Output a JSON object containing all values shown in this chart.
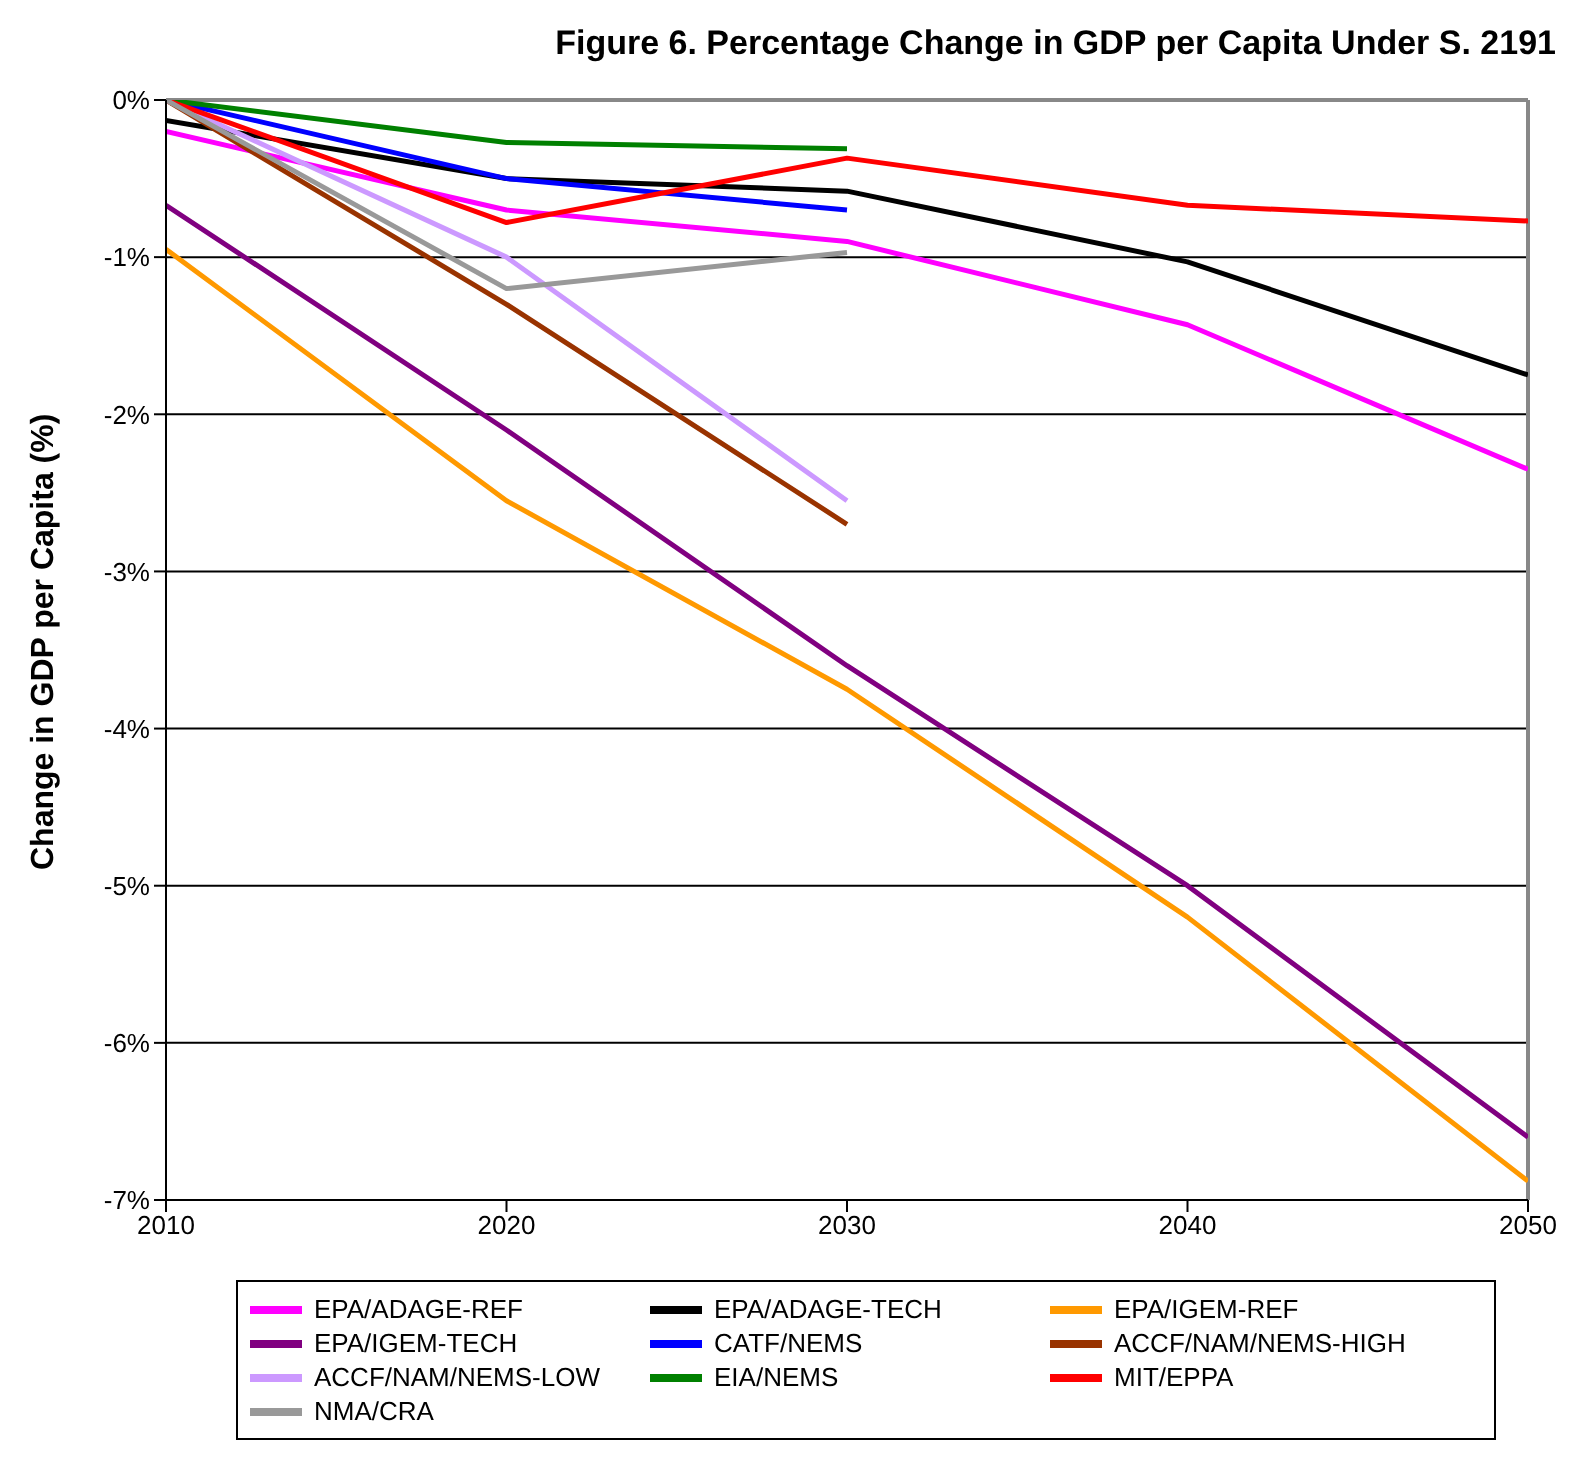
{
  "chart_data": {
    "type": "line",
    "title": "Figure 6.  Percentage Change in GDP per Capita Under S. 2191",
    "ylabel": "Change in GDP per Capita (%)",
    "x": [
      2010,
      2020,
      2030,
      2040,
      2050
    ],
    "series": [
      {
        "name": "EPA/ADAGE-REF",
        "color": "#ff00ff",
        "values": [
          -0.2,
          -0.7,
          -0.9,
          -1.43,
          -2.35
        ]
      },
      {
        "name": "EPA/ADAGE-TECH",
        "color": "#000000",
        "values": [
          -0.13,
          -0.5,
          -0.58,
          -1.03,
          -1.75
        ]
      },
      {
        "name": "EPA/IGEM-REF",
        "color": "#ff9900",
        "values": [
          -0.95,
          -2.55,
          -3.75,
          -5.2,
          -6.88
        ]
      },
      {
        "name": "EPA/IGEM-TECH",
        "color": "#800080",
        "values": [
          -0.67,
          -2.1,
          -3.6,
          -5.0,
          -6.6
        ]
      },
      {
        "name": "CATF/NEMS",
        "color": "#0000ff",
        "values": [
          0,
          -0.5,
          -0.7,
          null,
          null
        ]
      },
      {
        "name": "ACCF/NAM/NEMS-HIGH",
        "color": "#993300",
        "values": [
          0,
          -1.3,
          -2.7,
          null,
          null
        ]
      },
      {
        "name": "ACCF/NAM/NEMS-LOW",
        "color": "#cc99ff",
        "values": [
          0,
          -1.0,
          -2.55,
          null,
          null
        ]
      },
      {
        "name": "EIA/NEMS",
        "color": "#008000",
        "values": [
          0,
          -0.27,
          -0.31,
          null,
          null
        ]
      },
      {
        "name": "MIT/EPPA",
        "color": "#ff0000",
        "values": [
          0,
          -0.78,
          -0.37,
          -0.67,
          -0.77
        ]
      },
      {
        "name": "NMA/CRA",
        "color": "#999999",
        "values": [
          0,
          -1.2,
          -0.97,
          null,
          null
        ]
      }
    ],
    "xlim": [
      2010,
      2050
    ],
    "xticks": [
      2010,
      2020,
      2030,
      2040,
      2050
    ],
    "ylim": [
      -7,
      0
    ],
    "yticks": [
      {
        "value": -7,
        "label": "-7%"
      },
      {
        "value": -6,
        "label": "-6%"
      },
      {
        "value": -5,
        "label": "-5%"
      },
      {
        "value": -4,
        "label": "-4%"
      },
      {
        "value": -3,
        "label": "-3%"
      },
      {
        "value": -2,
        "label": "-2%"
      },
      {
        "value": -1,
        "label": "-1%"
      },
      {
        "value": 0,
        "label": "0%"
      }
    ],
    "grid": "y",
    "legend": "bottom",
    "marker": "none",
    "line_style": "solid"
  }
}
